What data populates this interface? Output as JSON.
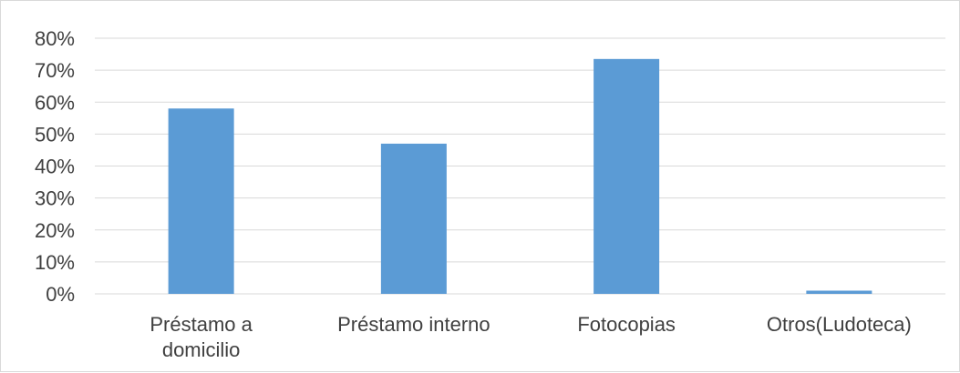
{
  "chart_data": {
    "type": "bar",
    "categories": [
      [
        "Préstamo a",
        "domicilio"
      ],
      [
        "Préstamo interno"
      ],
      [
        "Fotocopias"
      ],
      [
        "Otros(Ludoteca)"
      ]
    ],
    "values": [
      0.58,
      0.47,
      0.735,
      0.01
    ],
    "ylim": [
      0,
      0.8
    ],
    "yticks": [
      "0%",
      "10%",
      "20%",
      "30%",
      "40%",
      "50%",
      "60%",
      "70%",
      "80%"
    ],
    "grid": true,
    "legend": "none",
    "colors": {
      "bar": "#5b9bd5",
      "grid": "#d9d9d9",
      "text": "#404040"
    }
  }
}
